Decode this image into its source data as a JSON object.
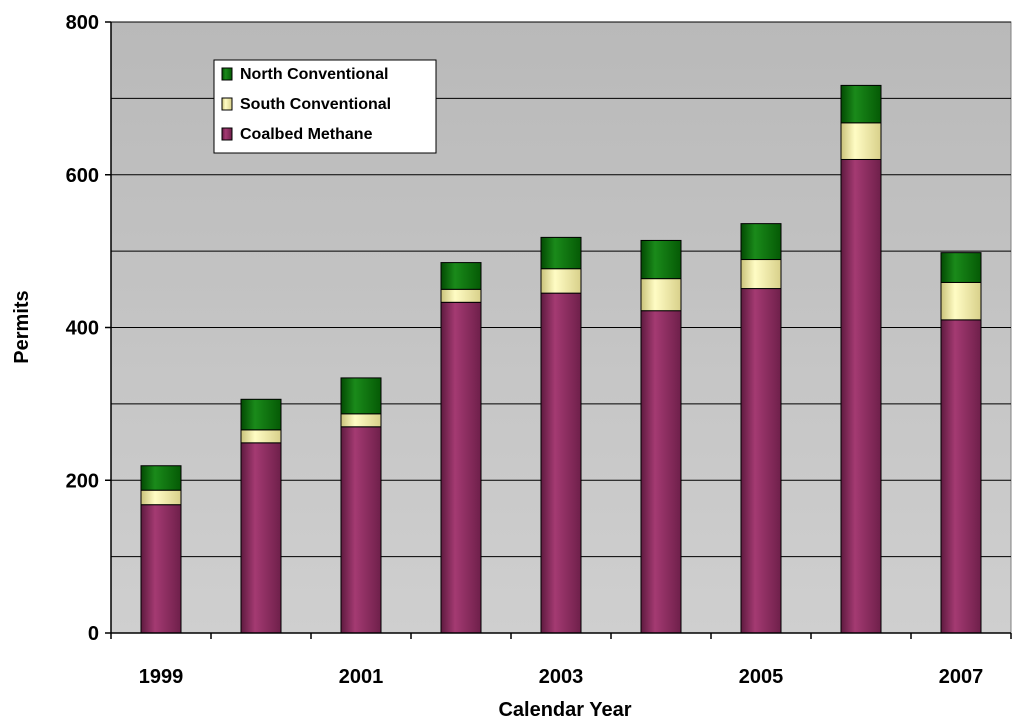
{
  "chart_data": {
    "type": "bar",
    "stacked": true,
    "categories": [
      "1999",
      "2000",
      "2001",
      "2002",
      "2003",
      "2004",
      "2005",
      "2006",
      "2007"
    ],
    "x_tick_labels": [
      "1999",
      "",
      "2001",
      "",
      "2003",
      "",
      "2005",
      "",
      "2007"
    ],
    "series": [
      {
        "name": "Coalbed Methane",
        "color": "#8c2a5e",
        "values": [
          168,
          249,
          270,
          433,
          445,
          422,
          451,
          620,
          410
        ]
      },
      {
        "name": "South Conventional",
        "color": "#fffcb0",
        "values": [
          19,
          17,
          17,
          17,
          32,
          42,
          38,
          48,
          49
        ]
      },
      {
        "name": "North Conventional",
        "color": "#0a6e0a",
        "values": [
          32,
          40,
          47,
          35,
          41,
          50,
          47,
          49,
          39
        ]
      }
    ],
    "legend_order": [
      "North Conventional",
      "South Conventional",
      "Coalbed Methane"
    ],
    "legend_placement": "top-left inside plot",
    "title": "",
    "xlabel": "Calendar Year",
    "ylabel": "Permits",
    "ylim": [
      0,
      800
    ],
    "y_ticks": [
      0,
      200,
      400,
      600,
      800
    ],
    "y_tick_labels": [
      "0",
      "200",
      "400",
      "600",
      "800"
    ],
    "gridlines": [
      100,
      200,
      300,
      400,
      500,
      600,
      700,
      800
    ],
    "grid": true,
    "plot_background": "#c0c0c0"
  }
}
